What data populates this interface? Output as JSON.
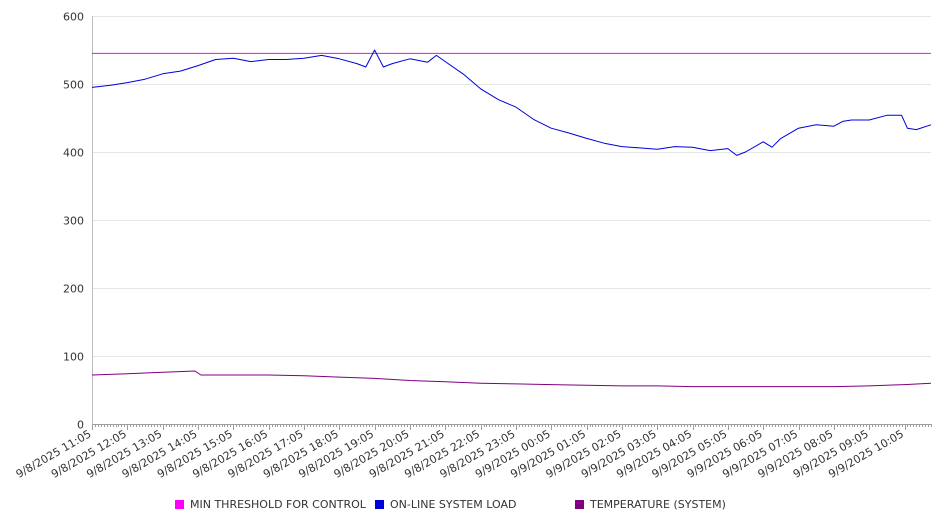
{
  "chart_data": {
    "type": "line",
    "title": "",
    "xlabel": "",
    "ylabel": "",
    "ylim": [
      0,
      600
    ],
    "y_ticks": [
      0,
      100,
      200,
      300,
      400,
      500,
      600
    ],
    "x_tick_labels": [
      "9/8/2025 11:05",
      "9/8/2025 12:05",
      "9/8/2025 13:05",
      "9/8/2025 14:05",
      "9/8/2025 15:05",
      "9/8/2025 16:05",
      "9/8/2025 17:05",
      "9/8/2025 18:05",
      "9/8/2025 19:05",
      "9/8/2025 20:05",
      "9/8/2025 21:05",
      "9/8/2025 22:05",
      "9/8/2025 23:05",
      "9/9/2025 00:05",
      "9/9/2025 01:05",
      "9/9/2025 02:05",
      "9/9/2025 03:05",
      "9/9/2025 04:05",
      "9/9/2025 05:05",
      "9/9/2025 06:05",
      "9/9/2025 07:05",
      "9/9/2025 08:05",
      "9/9/2025 09:05",
      "9/9/2025 10:05"
    ],
    "x_end": "9/9/2025 10:50",
    "grid": true,
    "legend_position": "bottom",
    "series": [
      {
        "name": "MIN THRESHOLD FOR CONTROL",
        "color": "#ff00ff",
        "points": [
          [
            "9/8/2025 11:05",
            545
          ],
          [
            "9/9/2025 10:50",
            545
          ]
        ]
      },
      {
        "name": "ON-LINE SYSTEM LOAD",
        "color": "#0000dd",
        "points": [
          [
            "9/8/2025 11:05",
            495
          ],
          [
            "9/8/2025 11:35",
            498
          ],
          [
            "9/8/2025 12:05",
            502
          ],
          [
            "9/8/2025 12:35",
            507
          ],
          [
            "9/8/2025 13:05",
            515
          ],
          [
            "9/8/2025 13:35",
            519
          ],
          [
            "9/8/2025 14:05",
            527
          ],
          [
            "9/8/2025 14:35",
            536
          ],
          [
            "9/8/2025 15:05",
            538
          ],
          [
            "9/8/2025 15:35",
            533
          ],
          [
            "9/8/2025 16:05",
            536
          ],
          [
            "9/8/2025 16:35",
            536
          ],
          [
            "9/8/2025 17:05",
            538
          ],
          [
            "9/8/2025 17:35",
            542
          ],
          [
            "9/8/2025 18:05",
            537
          ],
          [
            "9/8/2025 18:35",
            530
          ],
          [
            "9/8/2025 18:50",
            525
          ],
          [
            "9/8/2025 19:05",
            550
          ],
          [
            "9/8/2025 19:20",
            525
          ],
          [
            "9/8/2025 19:35",
            530
          ],
          [
            "9/8/2025 20:05",
            537
          ],
          [
            "9/8/2025 20:35",
            532
          ],
          [
            "9/8/2025 20:50",
            542
          ],
          [
            "9/8/2025 21:05",
            533
          ],
          [
            "9/8/2025 21:35",
            515
          ],
          [
            "9/8/2025 22:05",
            493
          ],
          [
            "9/8/2025 22:35",
            477
          ],
          [
            "9/8/2025 23:05",
            466
          ],
          [
            "9/8/2025 23:35",
            448
          ],
          [
            "9/9/2025 00:05",
            435
          ],
          [
            "9/9/2025 00:35",
            428
          ],
          [
            "9/9/2025 01:05",
            420
          ],
          [
            "9/9/2025 01:35",
            413
          ],
          [
            "9/9/2025 02:05",
            408
          ],
          [
            "9/9/2025 02:35",
            406
          ],
          [
            "9/9/2025 03:05",
            404
          ],
          [
            "9/9/2025 03:35",
            408
          ],
          [
            "9/9/2025 04:05",
            407
          ],
          [
            "9/9/2025 04:35",
            402
          ],
          [
            "9/9/2025 05:05",
            405
          ],
          [
            "9/9/2025 05:20",
            395
          ],
          [
            "9/9/2025 05:35",
            400
          ],
          [
            "9/9/2025 06:05",
            415
          ],
          [
            "9/9/2025 06:20",
            407
          ],
          [
            "9/9/2025 06:35",
            420
          ],
          [
            "9/9/2025 07:05",
            435
          ],
          [
            "9/9/2025 07:35",
            440
          ],
          [
            "9/9/2025 08:05",
            438
          ],
          [
            "9/9/2025 08:20",
            445
          ],
          [
            "9/9/2025 08:35",
            447
          ],
          [
            "9/9/2025 09:05",
            447
          ],
          [
            "9/9/2025 09:35",
            454
          ],
          [
            "9/9/2025 10:00",
            454
          ],
          [
            "9/9/2025 10:10",
            435
          ],
          [
            "9/9/2025 10:25",
            433
          ],
          [
            "9/9/2025 10:50",
            440
          ]
        ]
      },
      {
        "name": "TEMPERATURE (SYSTEM)",
        "color": "#800080",
        "points": [
          [
            "9/8/2025 11:05",
            72
          ],
          [
            "9/8/2025 12:05",
            74
          ],
          [
            "9/8/2025 13:05",
            76
          ],
          [
            "9/8/2025 14:00",
            78
          ],
          [
            "9/8/2025 14:10",
            72
          ],
          [
            "9/8/2025 16:05",
            72
          ],
          [
            "9/8/2025 17:05",
            71
          ],
          [
            "9/8/2025 18:05",
            69
          ],
          [
            "9/8/2025 19:05",
            67
          ],
          [
            "9/8/2025 20:05",
            64
          ],
          [
            "9/8/2025 21:05",
            62
          ],
          [
            "9/8/2025 22:05",
            60
          ],
          [
            "9/8/2025 23:05",
            59
          ],
          [
            "9/9/2025 00:05",
            58
          ],
          [
            "9/9/2025 01:05",
            57
          ],
          [
            "9/9/2025 02:05",
            56
          ],
          [
            "9/9/2025 03:05",
            56
          ],
          [
            "9/9/2025 04:05",
            55
          ],
          [
            "9/9/2025 05:05",
            55
          ],
          [
            "9/9/2025 06:05",
            55
          ],
          [
            "9/9/2025 07:05",
            55
          ],
          [
            "9/9/2025 08:05",
            55
          ],
          [
            "9/9/2025 09:05",
            56
          ],
          [
            "9/9/2025 10:05",
            58
          ],
          [
            "9/9/2025 10:50",
            60
          ]
        ]
      }
    ]
  }
}
